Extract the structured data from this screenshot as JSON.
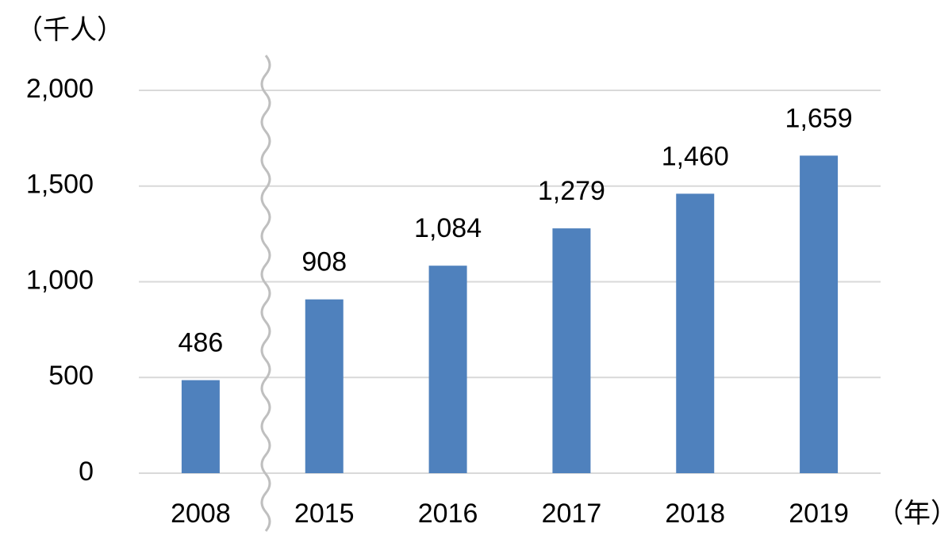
{
  "chart_data": {
    "type": "bar",
    "y_unit": "（千人）",
    "x_unit": "（年）",
    "categories": [
      "2008",
      "2015",
      "2016",
      "2017",
      "2018",
      "2019"
    ],
    "values": [
      486,
      908,
      1084,
      1279,
      1460,
      1659
    ],
    "value_labels": [
      "486",
      "908",
      "1,084",
      "1,279",
      "1,460",
      "1,659"
    ],
    "color": "#4f81bd",
    "ylim": [
      0,
      2000
    ],
    "yticks": [
      0,
      500,
      {
        "value": 1000,
        "label": "1,000"
      },
      {
        "value": 1500,
        "label": "1,500"
      },
      {
        "value": 2000,
        "label": "2,000"
      }
    ],
    "grid": true
  }
}
